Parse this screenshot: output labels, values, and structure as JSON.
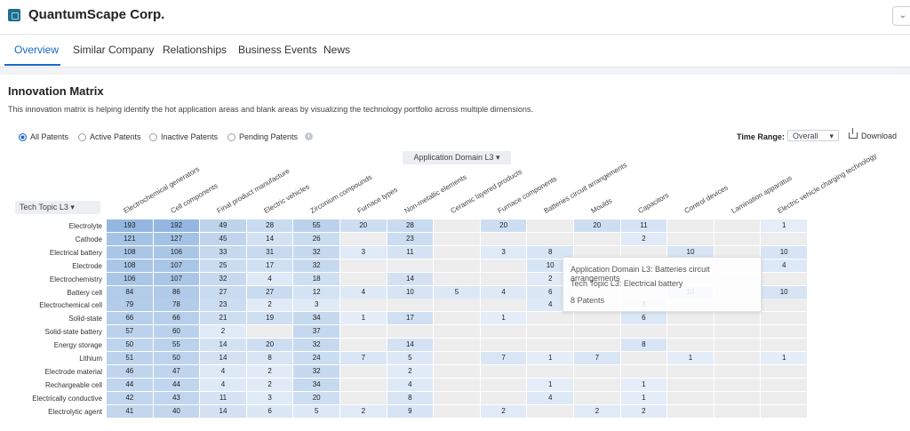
{
  "app": {
    "company_name": "QuantumScape Corp.",
    "corner_glyph": "⌄"
  },
  "tabs": [
    {
      "label": "Overview",
      "active": true
    },
    {
      "label": "Similar Company",
      "active": false
    },
    {
      "label": "Relationships",
      "active": false
    },
    {
      "label": "Business Events",
      "active": false
    },
    {
      "label": "News",
      "active": false
    }
  ],
  "matrix": {
    "title": "Innovation Matrix",
    "description": "This innovation matrix is helping identify the hot application areas and blank areas by visualizing the technology portfolio across multiple dimensions.",
    "filters": [
      {
        "label": "All Patents",
        "selected": true
      },
      {
        "label": "Active Patents",
        "selected": false
      },
      {
        "label": "Inactive Patents",
        "selected": false
      },
      {
        "label": "Pending Patents",
        "selected": false
      }
    ],
    "info_glyph": "i",
    "time_range_label": "Time Range:",
    "time_range_value": "Overall",
    "download_label": "Download",
    "domain_selector": "Application Domain L3",
    "topic_selector": "Tech Topic L3",
    "columns": [
      "Electrochemical generators",
      "Cell components",
      "Final product manufacture",
      "Electric vehicles",
      "Zirconium compounds",
      "Furnace types",
      "Non-metallic elements",
      "Ceramic layered products",
      "Furnace components",
      "Batteries circuit arrangements",
      "Moulds",
      "Capacitors",
      "Control devices",
      "Lamination apparatus",
      "Electric vehicle charging technology"
    ],
    "rows": [
      {
        "label": "Electrolyte",
        "values": [
          193,
          192,
          49,
          28,
          55,
          20,
          28,
          null,
          20,
          null,
          20,
          11,
          null,
          null,
          1
        ]
      },
      {
        "label": "Cathode",
        "values": [
          121,
          127,
          45,
          14,
          26,
          null,
          23,
          null,
          null,
          null,
          null,
          2,
          null,
          null,
          null
        ]
      },
      {
        "label": "Electrical battery",
        "values": [
          108,
          106,
          33,
          31,
          32,
          3,
          11,
          null,
          3,
          8,
          null,
          null,
          10,
          null,
          10
        ]
      },
      {
        "label": "Electrode",
        "values": [
          108,
          107,
          25,
          17,
          32,
          null,
          null,
          null,
          null,
          10,
          null,
          null,
          null,
          null,
          4
        ]
      },
      {
        "label": "Electrochemistry",
        "values": [
          106,
          107,
          32,
          4,
          18,
          null,
          14,
          null,
          null,
          2,
          null,
          null,
          null,
          null,
          null
        ]
      },
      {
        "label": "Battery cell",
        "values": [
          84,
          86,
          27,
          27,
          12,
          4,
          10,
          5,
          4,
          6,
          null,
          null,
          10,
          null,
          10
        ]
      },
      {
        "label": "Electrochemical cell",
        "values": [
          79,
          78,
          23,
          2,
          3,
          null,
          null,
          null,
          null,
          4,
          null,
          3,
          null,
          null,
          null
        ]
      },
      {
        "label": "Solid-state",
        "values": [
          66,
          66,
          21,
          19,
          34,
          1,
          17,
          null,
          1,
          null,
          null,
          6,
          null,
          null,
          null
        ]
      },
      {
        "label": "Solid-state battery",
        "values": [
          57,
          60,
          2,
          null,
          37,
          null,
          null,
          null,
          null,
          null,
          null,
          null,
          null,
          null,
          null
        ]
      },
      {
        "label": "Energy storage",
        "values": [
          50,
          55,
          14,
          20,
          32,
          null,
          14,
          null,
          null,
          null,
          null,
          8,
          null,
          null,
          null
        ]
      },
      {
        "label": "Lithium",
        "values": [
          51,
          50,
          14,
          8,
          24,
          7,
          5,
          null,
          7,
          1,
          7,
          null,
          1,
          null,
          1
        ]
      },
      {
        "label": "Electrode material",
        "values": [
          46,
          47,
          4,
          2,
          32,
          null,
          2,
          null,
          null,
          null,
          null,
          null,
          null,
          null,
          null
        ]
      },
      {
        "label": "Rechargeable cell",
        "values": [
          44,
          44,
          4,
          2,
          34,
          null,
          4,
          null,
          null,
          1,
          null,
          1,
          null,
          null,
          null
        ]
      },
      {
        "label": "Electrically conductive",
        "values": [
          42,
          43,
          11,
          3,
          20,
          null,
          8,
          null,
          null,
          4,
          null,
          1,
          null,
          null,
          null
        ]
      },
      {
        "label": "Electrolytic agent",
        "values": [
          41,
          40,
          14,
          6,
          5,
          2,
          9,
          null,
          2,
          null,
          2,
          2,
          null,
          null,
          null
        ]
      }
    ],
    "tooltip": {
      "domain_line": "Application Domain L3: Batteries circuit arrangements",
      "topic_line": "Tech Topic L3: Electrical battery",
      "count_line": "8 Patents"
    }
  },
  "colors": {
    "accent": "#1a67c9",
    "empty_cell": "#ededee",
    "high": "#a9c5e4",
    "low": "#eaf1fa"
  }
}
